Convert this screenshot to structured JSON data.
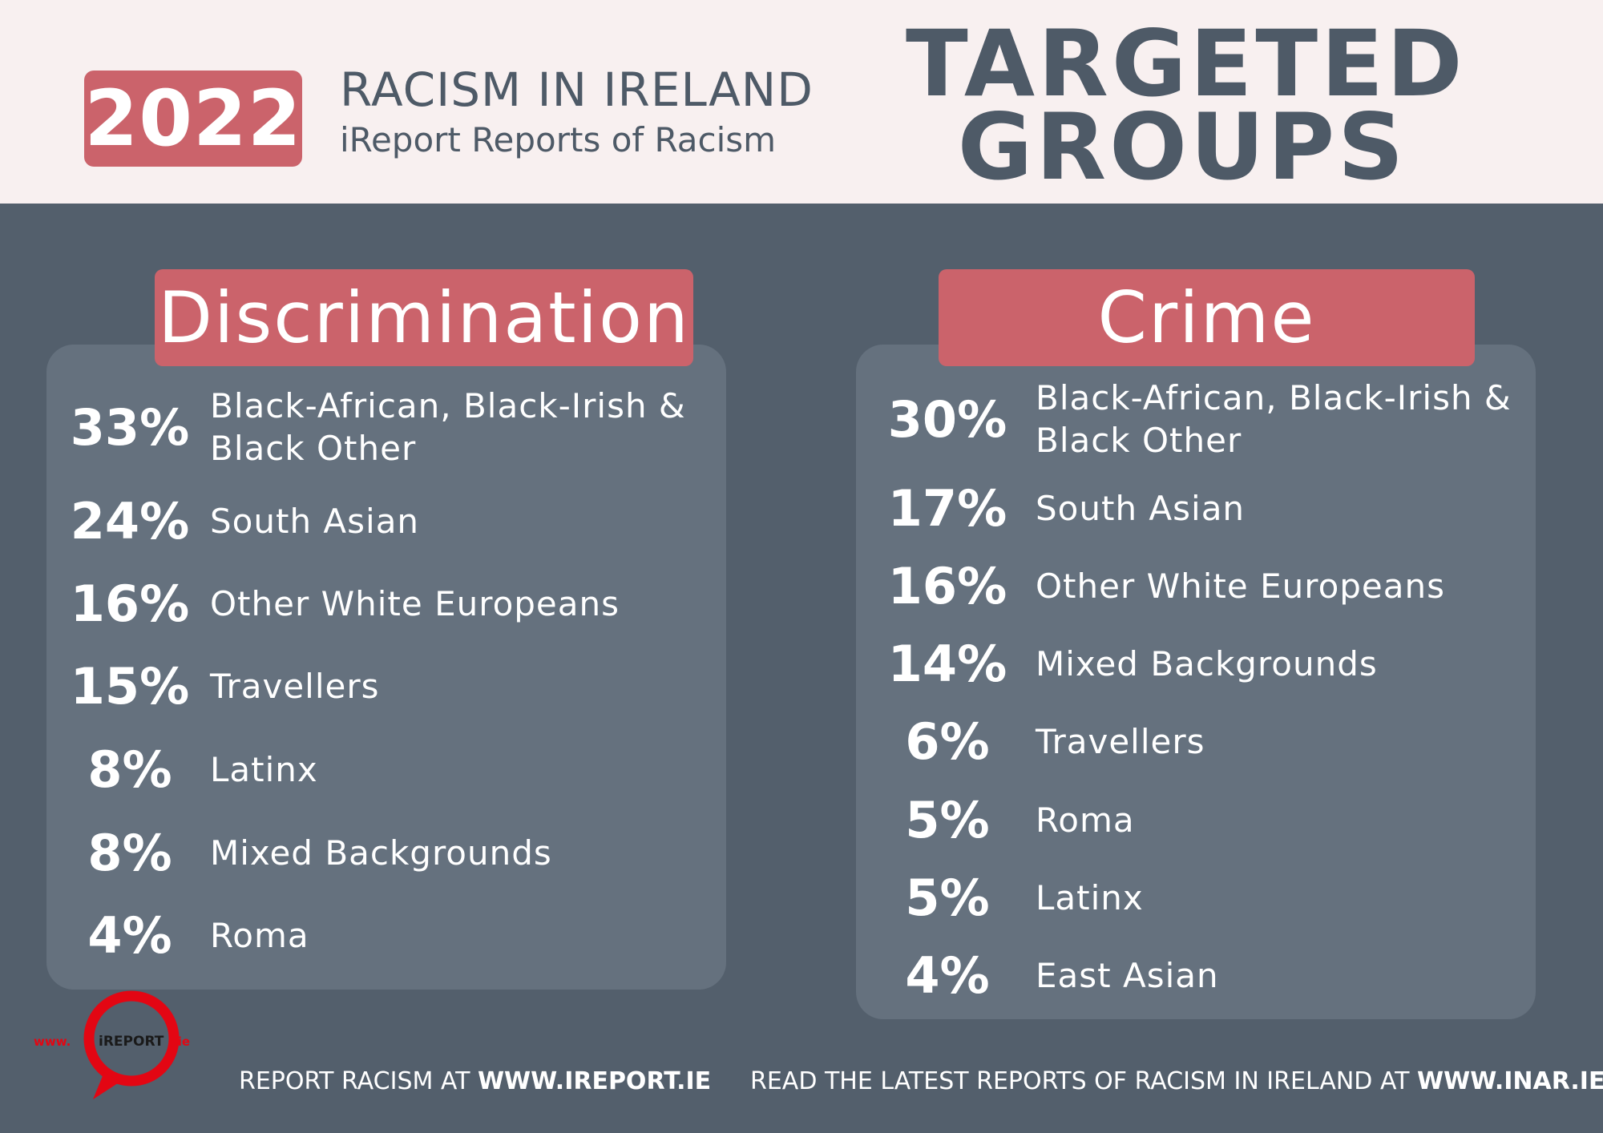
{
  "header": {
    "year": "2022",
    "subtitle_line1": "RACISM IN IRELAND",
    "subtitle_line2": "iReport Reports of Racism",
    "title_line1": "TARGETED",
    "title_line2": "GROUPS"
  },
  "discrimination": {
    "label": "Discrimination",
    "rows": [
      {
        "pct": "33%",
        "group": "Black-African, Black-Irish & Black Other"
      },
      {
        "pct": "24%",
        "group": "South Asian"
      },
      {
        "pct": "16%",
        "group": "Other White Europeans"
      },
      {
        "pct": "15%",
        "group": "Travellers"
      },
      {
        "pct": "8%",
        "group": "Latinx"
      },
      {
        "pct": "8%",
        "group": "Mixed Backgrounds"
      },
      {
        "pct": "4%",
        "group": "Roma"
      }
    ]
  },
  "crime": {
    "label": "Crime",
    "rows": [
      {
        "pct": "30%",
        "group": "Black-African, Black-Irish & Black Other"
      },
      {
        "pct": "17%",
        "group": "South Asian"
      },
      {
        "pct": "16%",
        "group": "Other White Europeans"
      },
      {
        "pct": "14%",
        "group": "Mixed Backgrounds"
      },
      {
        "pct": "6%",
        "group": "Travellers"
      },
      {
        "pct": "5%",
        "group": "Roma"
      },
      {
        "pct": "5%",
        "group": "Latinx"
      },
      {
        "pct": "4%",
        "group": "East Asian"
      }
    ]
  },
  "logo": {
    "prefix": "www.",
    "brand": "iREPORT",
    "suffix": ".ie"
  },
  "footer": {
    "left_text": "REPORT RACISM AT ",
    "left_link": "WWW.IREPORT.IE",
    "right_text": "READ THE LATEST REPORTS OF RACISM IN IRELAND AT ",
    "right_link": "WWW.INAR.IE"
  },
  "colors": {
    "background": "#535f6c",
    "header_bg": "#f8f0f0",
    "accent": "#cb636b",
    "panel": "#65717e",
    "logo_red": "#e30613"
  }
}
